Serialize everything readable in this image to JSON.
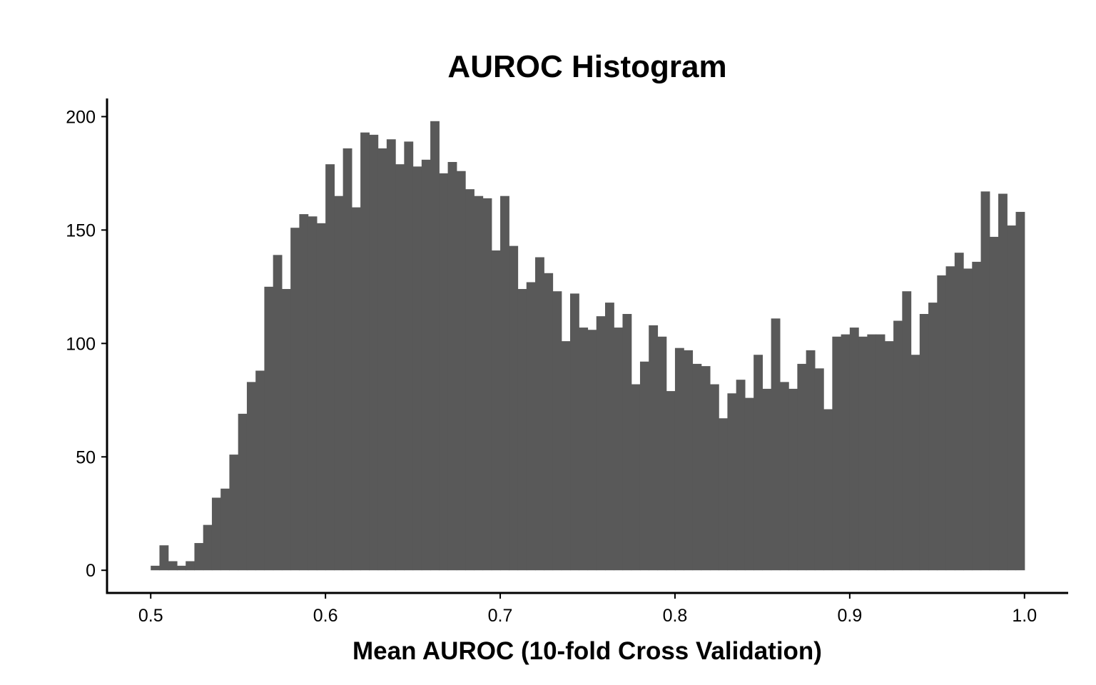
{
  "chart_data": {
    "type": "bar",
    "title": "AUROC Histogram",
    "xlabel": "Mean AUROC (10-fold Cross Validation)",
    "ylabel": "",
    "xlim": [
      0.475,
      1.025
    ],
    "ylim": [
      -10,
      208
    ],
    "bin_start": 0.5,
    "bin_width": 0.005,
    "bar_color": "#595959",
    "grid": false,
    "legend": "none",
    "x_ticks": [
      {
        "value": 0.5,
        "label": "0.5"
      },
      {
        "value": 0.6,
        "label": "0.6"
      },
      {
        "value": 0.7,
        "label": "0.7"
      },
      {
        "value": 0.8,
        "label": "0.8"
      },
      {
        "value": 0.9,
        "label": "0.9"
      },
      {
        "value": 1.0,
        "label": "1.0"
      }
    ],
    "y_ticks": [
      {
        "value": 0,
        "label": "0"
      },
      {
        "value": 50,
        "label": "50"
      },
      {
        "value": 100,
        "label": "100"
      },
      {
        "value": 150,
        "label": "150"
      },
      {
        "value": 200,
        "label": "200"
      }
    ],
    "values": [
      2,
      11,
      4,
      2,
      4,
      12,
      20,
      32,
      36,
      51,
      69,
      83,
      88,
      125,
      139,
      124,
      151,
      157,
      156,
      153,
      179,
      165,
      186,
      160,
      193,
      192,
      186,
      190,
      179,
      189,
      178,
      181,
      198,
      175,
      180,
      176,
      168,
      165,
      164,
      141,
      165,
      143,
      124,
      127,
      138,
      131,
      123,
      101,
      122,
      107,
      106,
      112,
      118,
      107,
      113,
      82,
      92,
      108,
      103,
      79,
      98,
      97,
      91,
      90,
      82,
      67,
      78,
      84,
      76,
      95,
      80,
      111,
      83,
      80,
      91,
      97,
      89,
      71,
      103,
      104,
      107,
      103,
      104,
      104,
      101,
      110,
      123,
      95,
      113,
      118,
      130,
      134,
      140,
      133,
      136,
      167,
      147,
      166,
      152,
      158
    ]
  }
}
